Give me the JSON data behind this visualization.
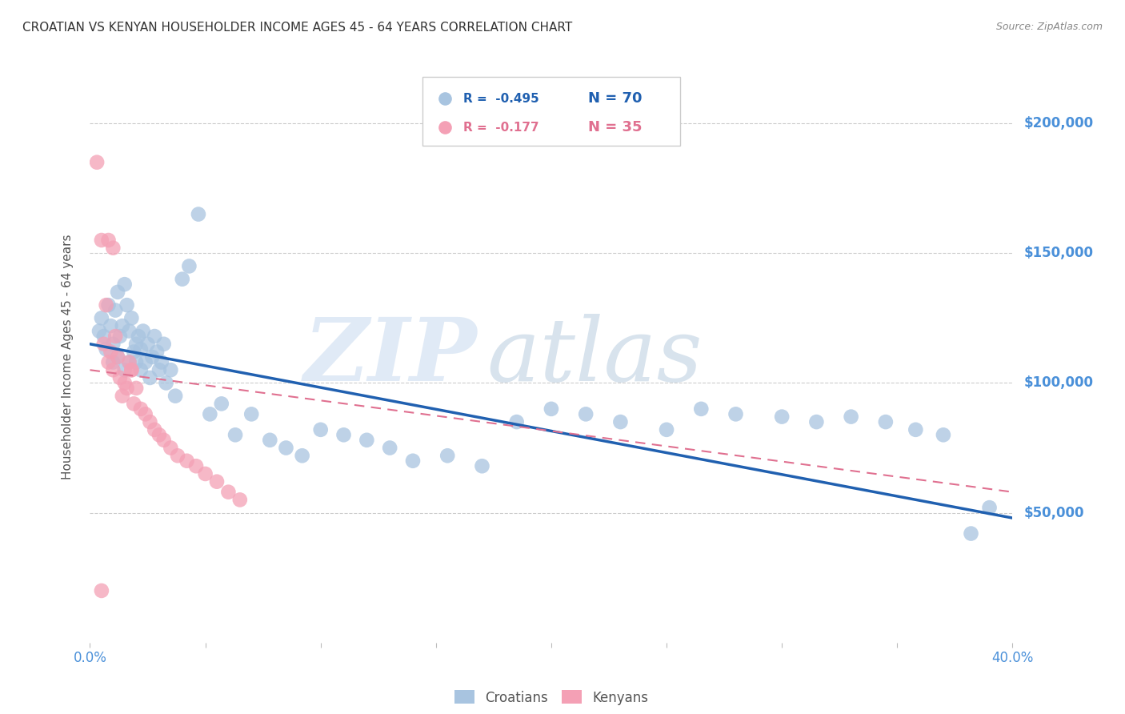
{
  "title": "CROATIAN VS KENYAN HOUSEHOLDER INCOME AGES 45 - 64 YEARS CORRELATION CHART",
  "source": "Source: ZipAtlas.com",
  "ylabel": "Householder Income Ages 45 - 64 years",
  "xlim": [
    0.0,
    0.4
  ],
  "ylim": [
    0,
    220000
  ],
  "yticks": [
    0,
    50000,
    100000,
    150000,
    200000
  ],
  "ytick_labels": [
    "",
    "$50,000",
    "$100,000",
    "$150,000",
    "$200,000"
  ],
  "xticks": [
    0.0,
    0.05,
    0.1,
    0.15,
    0.2,
    0.25,
    0.3,
    0.35,
    0.4
  ],
  "xtick_labels": [
    "0.0%",
    "",
    "",
    "",
    "",
    "",
    "",
    "",
    "40.0%"
  ],
  "croatian_color": "#a8c4e0",
  "kenyan_color": "#f4a0b5",
  "trendline_blue_color": "#2060b0",
  "trendline_pink_color": "#e07090",
  "legend_R_blue": "-0.495",
  "legend_N_blue": "70",
  "legend_R_pink": "-0.177",
  "legend_N_pink": "35",
  "watermark": "ZIPatlas",
  "title_color": "#333333",
  "axis_label_color": "#555555",
  "tick_color": "#4a90d9",
  "grid_color": "#cccccc",
  "croatian_x": [
    0.004,
    0.005,
    0.006,
    0.007,
    0.008,
    0.009,
    0.01,
    0.01,
    0.011,
    0.012,
    0.012,
    0.013,
    0.014,
    0.015,
    0.015,
    0.016,
    0.017,
    0.017,
    0.018,
    0.019,
    0.02,
    0.02,
    0.021,
    0.022,
    0.022,
    0.023,
    0.024,
    0.025,
    0.026,
    0.027,
    0.028,
    0.029,
    0.03,
    0.031,
    0.032,
    0.033,
    0.035,
    0.037,
    0.04,
    0.043,
    0.047,
    0.052,
    0.057,
    0.063,
    0.07,
    0.078,
    0.085,
    0.092,
    0.1,
    0.11,
    0.12,
    0.13,
    0.14,
    0.155,
    0.17,
    0.185,
    0.2,
    0.215,
    0.23,
    0.25,
    0.265,
    0.28,
    0.3,
    0.315,
    0.33,
    0.345,
    0.358,
    0.37,
    0.382,
    0.39
  ],
  "croatian_y": [
    120000,
    125000,
    118000,
    113000,
    130000,
    122000,
    108000,
    115000,
    128000,
    110000,
    135000,
    118000,
    122000,
    105000,
    138000,
    130000,
    108000,
    120000,
    125000,
    112000,
    115000,
    108000,
    118000,
    105000,
    113000,
    120000,
    108000,
    115000,
    102000,
    110000,
    118000,
    112000,
    105000,
    108000,
    115000,
    100000,
    105000,
    95000,
    140000,
    145000,
    165000,
    88000,
    92000,
    80000,
    88000,
    78000,
    75000,
    72000,
    82000,
    80000,
    78000,
    75000,
    70000,
    72000,
    68000,
    85000,
    90000,
    88000,
    85000,
    82000,
    90000,
    88000,
    87000,
    85000,
    87000,
    85000,
    82000,
    80000,
    42000,
    52000
  ],
  "kenyan_x": [
    0.003,
    0.005,
    0.006,
    0.007,
    0.008,
    0.009,
    0.01,
    0.011,
    0.012,
    0.013,
    0.014,
    0.015,
    0.016,
    0.017,
    0.018,
    0.019,
    0.02,
    0.022,
    0.024,
    0.026,
    0.028,
    0.03,
    0.032,
    0.035,
    0.038,
    0.042,
    0.046,
    0.05,
    0.055,
    0.06,
    0.065,
    0.008,
    0.018,
    0.01,
    0.005
  ],
  "kenyan_y": [
    185000,
    155000,
    115000,
    130000,
    108000,
    112000,
    105000,
    118000,
    110000,
    102000,
    95000,
    100000,
    98000,
    108000,
    105000,
    92000,
    98000,
    90000,
    88000,
    85000,
    82000,
    80000,
    78000,
    75000,
    72000,
    70000,
    68000,
    65000,
    62000,
    58000,
    55000,
    155000,
    105000,
    152000,
    20000
  ],
  "blue_trend_x": [
    0.0,
    0.4
  ],
  "blue_trend_y": [
    115000,
    48000
  ],
  "pink_trend_x": [
    0.0,
    0.4
  ],
  "pink_trend_y": [
    105000,
    58000
  ],
  "background_color": "#ffffff"
}
